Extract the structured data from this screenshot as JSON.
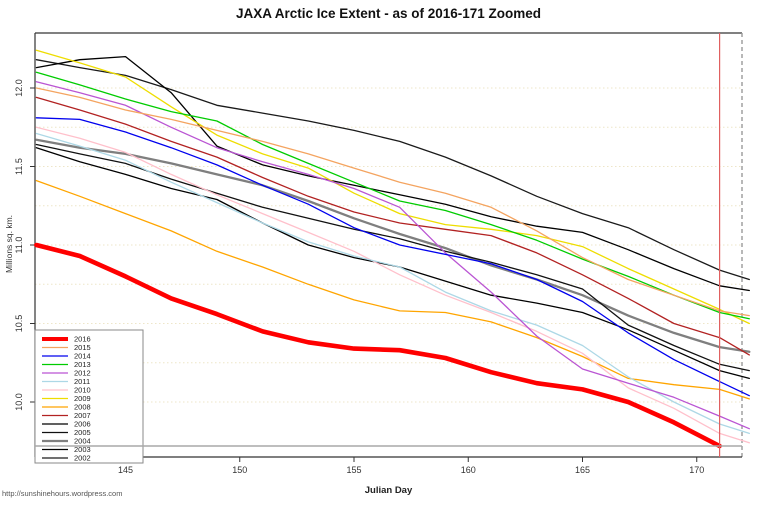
{
  "title": "JAXA Arctic Ice Extent - as of 2016-171 Zoomed",
  "source_url": "http://sunshinehours.wordpress.com",
  "chart_data": {
    "type": "line",
    "title": "JAXA Arctic Ice Extent - as of 2016-171 Zoomed",
    "xlabel": "Julian Day",
    "ylabel": "Millions sq. km.",
    "xlim": [
      141.1,
      172.3
    ],
    "ylim": [
      9.63,
      12.35
    ],
    "x_ticks": [
      145,
      150,
      155,
      160,
      165,
      170
    ],
    "y_ticks": [
      10.0,
      10.5,
      11.0,
      11.5,
      12.0
    ],
    "y_tick_labels": [
      "10.0",
      "10.5",
      "11.0",
      "11.5",
      "12.0"
    ],
    "grid": {
      "horizontal_step": 0.25,
      "from": 10.0,
      "to": 12.0,
      "style": "dotted",
      "color": "#eee6c8"
    },
    "legend_position": "bottom-left",
    "reference_lines": {
      "vertical_x": 171,
      "vertical_color": "#e06060",
      "horizontal_y": 9.72,
      "horizontal_color": "#a8a8a8"
    },
    "frame": {
      "top_color": "#808080",
      "right_style": "dashed",
      "right_color": "#9a9a9a",
      "axis_color": "#333333"
    },
    "x": [
      141.1,
      143,
      145,
      147,
      149,
      151,
      153,
      155,
      157,
      159,
      161,
      163,
      165,
      167,
      169,
      171,
      172.3
    ],
    "series": [
      {
        "name": "2016",
        "color": "#ff0000",
        "width": 4.6,
        "values": [
          11.0,
          10.93,
          10.8,
          10.66,
          10.56,
          10.45,
          10.38,
          10.34,
          10.33,
          10.28,
          10.19,
          10.12,
          10.08,
          10.0,
          9.87,
          9.72
        ]
      },
      {
        "name": "2015",
        "color": "#f4a460",
        "width": 1.3,
        "values": [
          12.0,
          11.94,
          11.86,
          11.8,
          11.73,
          11.66,
          11.58,
          11.49,
          11.4,
          11.33,
          11.24,
          11.09,
          10.92,
          10.78,
          10.68,
          10.58,
          10.55
        ]
      },
      {
        "name": "2014",
        "color": "#0000ee",
        "width": 1.3,
        "values": [
          11.81,
          11.8,
          11.72,
          11.62,
          11.51,
          11.38,
          11.26,
          11.11,
          11.0,
          10.94,
          10.88,
          10.78,
          10.64,
          10.44,
          10.27,
          10.13,
          10.04
        ]
      },
      {
        "name": "2013",
        "color": "#00cc00",
        "width": 1.3,
        "values": [
          12.1,
          12.02,
          11.93,
          11.85,
          11.79,
          11.64,
          11.52,
          11.4,
          11.28,
          11.22,
          11.13,
          11.03,
          10.91,
          10.8,
          10.68,
          10.57,
          10.53
        ]
      },
      {
        "name": "2012",
        "color": "#ba55d3",
        "width": 1.3,
        "values": [
          12.04,
          11.97,
          11.89,
          11.75,
          11.62,
          11.53,
          11.45,
          11.36,
          11.24,
          10.95,
          10.7,
          10.42,
          10.21,
          10.12,
          10.03,
          9.91,
          9.83
        ]
      },
      {
        "name": "2011",
        "color": "#add8e6",
        "width": 1.3,
        "values": [
          11.71,
          11.63,
          11.54,
          11.4,
          11.27,
          11.14,
          11.02,
          10.93,
          10.86,
          10.7,
          10.58,
          10.49,
          10.36,
          10.16,
          10.0,
          9.86,
          9.8
        ]
      },
      {
        "name": "2010",
        "color": "#ffc0cb",
        "width": 1.3,
        "values": [
          11.75,
          11.68,
          11.59,
          11.45,
          11.32,
          11.2,
          11.08,
          10.96,
          10.81,
          10.68,
          10.57,
          10.45,
          10.31,
          10.09,
          9.96,
          9.8,
          9.74
        ]
      },
      {
        "name": "2009",
        "color": "#eedd00",
        "width": 1.3,
        "values": [
          12.24,
          12.16,
          12.07,
          11.88,
          11.7,
          11.58,
          11.49,
          11.33,
          11.2,
          11.13,
          11.1,
          11.06,
          10.99,
          10.85,
          10.72,
          10.59,
          10.5
        ]
      },
      {
        "name": "2008",
        "color": "#ffa500",
        "width": 1.3,
        "values": [
          11.41,
          11.31,
          11.2,
          11.09,
          10.96,
          10.86,
          10.75,
          10.65,
          10.58,
          10.57,
          10.51,
          10.41,
          10.29,
          10.15,
          10.11,
          10.08,
          10.02
        ]
      },
      {
        "name": "2007",
        "color": "#b22222",
        "width": 1.3,
        "values": [
          11.94,
          11.86,
          11.77,
          11.66,
          11.56,
          11.43,
          11.31,
          11.21,
          11.14,
          11.1,
          11.06,
          10.95,
          10.81,
          10.66,
          10.5,
          10.41,
          10.3
        ]
      },
      {
        "name": "2006",
        "color": "#000000",
        "width": 1.3,
        "values": [
          11.62,
          11.53,
          11.45,
          11.36,
          11.29,
          11.14,
          11.0,
          10.92,
          10.86,
          10.77,
          10.68,
          10.63,
          10.57,
          10.46,
          10.33,
          10.2,
          10.15
        ]
      },
      {
        "name": "2005",
        "color": "#111111",
        "width": 1.3,
        "values": [
          11.64,
          11.58,
          11.52,
          11.42,
          11.33,
          11.24,
          11.17,
          11.1,
          11.04,
          10.96,
          10.89,
          10.81,
          10.72,
          10.49,
          10.36,
          10.24,
          10.2
        ]
      },
      {
        "name": "2004",
        "color": "#7f7f7f",
        "width": 2.3,
        "values": [
          11.67,
          11.62,
          11.58,
          11.52,
          11.45,
          11.38,
          11.28,
          11.17,
          11.07,
          10.98,
          10.87,
          10.78,
          10.68,
          10.55,
          10.44,
          10.35,
          10.32
        ]
      },
      {
        "name": "2003",
        "color": "#000000",
        "width": 1.3,
        "values": [
          12.13,
          12.18,
          12.2,
          11.97,
          11.63,
          11.51,
          11.44,
          11.38,
          11.32,
          11.26,
          11.18,
          11.12,
          11.08,
          10.97,
          10.85,
          10.74,
          10.71
        ]
      },
      {
        "name": "2002",
        "color": "#1a1a1a",
        "width": 1.3,
        "values": [
          12.18,
          12.13,
          12.08,
          11.99,
          11.89,
          11.84,
          11.79,
          11.73,
          11.66,
          11.56,
          11.44,
          11.31,
          11.2,
          11.11,
          10.97,
          10.84,
          10.78
        ]
      }
    ]
  }
}
